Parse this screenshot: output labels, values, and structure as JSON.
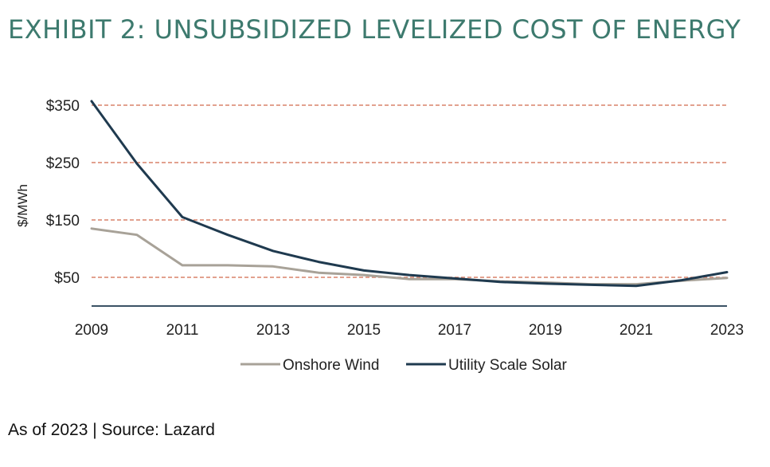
{
  "title": "EXHIBIT 2: UNSUBSIDIZED LEVELIZED COST OF ENERGY",
  "footnote": "As of 2023 | Source: Lazard",
  "colors": {
    "title": "#3d7a6e",
    "grid": "#d9826a",
    "axis": "#1f3a4f",
    "wind": "#a8a298",
    "solar": "#1f3a4f"
  },
  "chart_data": {
    "type": "line",
    "ylabel": "$/MWh",
    "xlabel": "",
    "y_ticks": [
      50,
      150,
      250,
      350
    ],
    "y_tick_labels": [
      "$50",
      "$150",
      "$250",
      "$350"
    ],
    "x_ticks": [
      2009,
      2011,
      2013,
      2015,
      2017,
      2019,
      2021,
      2023
    ],
    "x_tick_labels": [
      "2009",
      "2011",
      "2013",
      "2015",
      "2017",
      "2019",
      "2021",
      "2023"
    ],
    "xlim": [
      2009,
      2023
    ],
    "ylim": [
      15,
      360
    ],
    "grid": "horizontal dashed",
    "legend_position": "bottom",
    "x": [
      2009,
      2010,
      2011,
      2012,
      2013,
      2014,
      2015,
      2016,
      2017,
      2018,
      2019,
      2020,
      2021,
      2022,
      2023
    ],
    "series": [
      {
        "name": "Onshore Wind",
        "color_key": "wind",
        "values": [
          135,
          124,
          71,
          71,
          69,
          58,
          54,
          47,
          47,
          43,
          41,
          38,
          38,
          44,
          49
        ]
      },
      {
        "name": "Utility Scale Solar",
        "color_key": "solar",
        "values": [
          357,
          248,
          155,
          124,
          96,
          77,
          62,
          54,
          48,
          42,
          39,
          37,
          35,
          45,
          59
        ]
      }
    ]
  }
}
